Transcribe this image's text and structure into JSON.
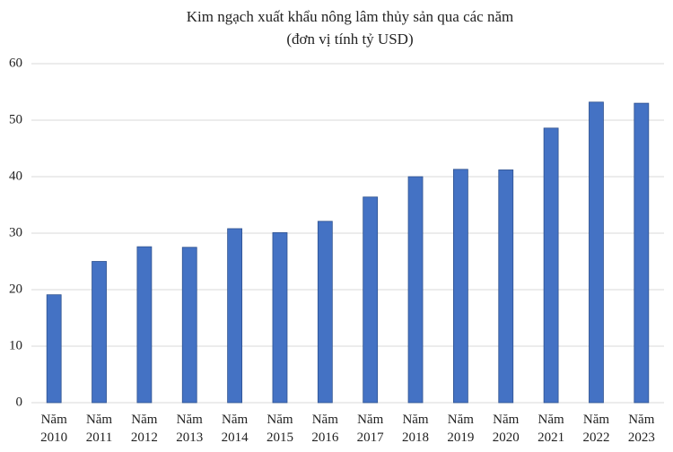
{
  "chart_data": {
    "type": "bar",
    "title": "Kim ngạch xuất khẩu nông lâm thủy sản qua các năm",
    "subtitle": "(đơn vị tính tỷ USD)",
    "categories": [
      "Năm 2010",
      "Năm 2011",
      "Năm 2012",
      "Năm 2013",
      "Năm 2014",
      "Năm 2015",
      "Năm 2016",
      "Năm 2017",
      "Năm 2018",
      "Năm 2019",
      "Năm 2020",
      "Năm 2021",
      "Năm 2022",
      "Năm 2023"
    ],
    "values": [
      19.1,
      25,
      27.6,
      27.5,
      30.8,
      30.1,
      32.1,
      36.4,
      40,
      41.3,
      41.2,
      48.6,
      53.2,
      53
    ],
    "color": "#4472c4",
    "ylim": [
      0,
      60
    ],
    "yticks": [
      0,
      10,
      20,
      30,
      40,
      50,
      60
    ],
    "grid": true
  }
}
